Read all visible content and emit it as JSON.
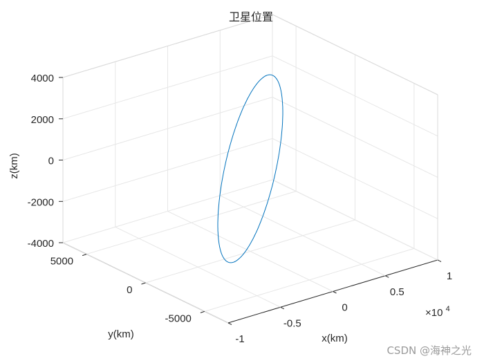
{
  "chart_data": {
    "type": "line3d",
    "title": "卫星位置",
    "xlabel": "x(km)",
    "ylabel": "y(km)",
    "zlabel": "z(km)",
    "xlim": [
      -1,
      1
    ],
    "ylim": [
      -7000,
      7000
    ],
    "zlim": [
      -4000,
      4000
    ],
    "x_ticks": [
      "-1",
      "-0.5",
      "0",
      "0.5",
      "1"
    ],
    "x_tick_values": [
      -1,
      -0.5,
      0,
      0.5,
      1
    ],
    "x_exponent": "×10",
    "x_exponent_power": "4",
    "y_ticks": [
      "5000",
      "0",
      "-5000"
    ],
    "y_tick_values": [
      5000,
      0,
      -5000
    ],
    "z_ticks": [
      "4000",
      "2000",
      "0",
      "-2000",
      "-4000"
    ],
    "z_tick_values": [
      4000,
      2000,
      0,
      -2000,
      -4000
    ],
    "grid": true,
    "series_color": "#0072bd",
    "orbit": {
      "x_amplitude_1e4": 0.72,
      "y_amplitude_km": 3700,
      "z_amplitude_km": 4150,
      "samples": 240
    }
  },
  "watermark": "CSDN @海神之光"
}
